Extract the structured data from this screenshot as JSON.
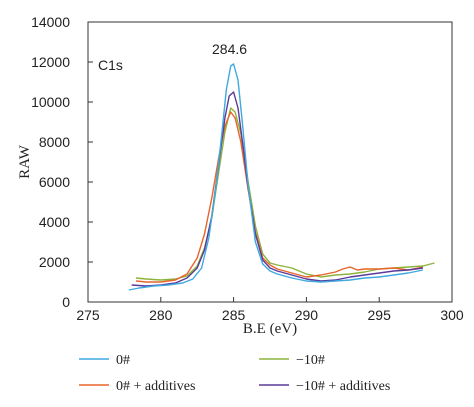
{
  "chart_data": {
    "type": "line",
    "xlabel": "B.E (eV)",
    "ylabel": "RAW",
    "xlim": [
      275,
      300
    ],
    "ylim": [
      0,
      14000
    ],
    "x_ticks": [
      275,
      280,
      285,
      290,
      295,
      300
    ],
    "y_ticks": [
      0,
      2000,
      4000,
      6000,
      8000,
      10000,
      12000,
      14000
    ],
    "grid": false,
    "legend_position": "bottom",
    "annotations": [
      {
        "text": "C1s",
        "x": 277,
        "y": 11800
      },
      {
        "text": "284.6",
        "x": 284.7,
        "y": 12400
      }
    ],
    "series": [
      {
        "name": "0#",
        "color": "#3fa9e0",
        "x": [
          277.8,
          278.5,
          279.5,
          280.5,
          281.5,
          282.2,
          282.8,
          283.3,
          283.8,
          284.2,
          284.5,
          284.8,
          285.0,
          285.3,
          285.6,
          286.0,
          286.5,
          287.0,
          287.5,
          288.0,
          289.0,
          290.0,
          291.0,
          292.0,
          293.0,
          294.0,
          295.0,
          296.0,
          297.0,
          298.0
        ],
        "y": [
          600,
          700,
          800,
          850,
          950,
          1150,
          1700,
          3200,
          5800,
          8500,
          10600,
          11800,
          11900,
          11100,
          9000,
          5800,
          3000,
          1900,
          1550,
          1400,
          1200,
          1050,
          1000,
          1050,
          1100,
          1200,
          1250,
          1350,
          1450,
          1600
        ]
      },
      {
        "name": "0# + additives",
        "color": "#e8642a",
        "x": [
          278.3,
          279.0,
          280.0,
          281.0,
          281.8,
          282.5,
          283.0,
          283.5,
          284.0,
          284.4,
          284.8,
          285.1,
          285.5,
          286.0,
          286.5,
          287.0,
          287.5,
          288.0,
          289.0,
          290.0,
          291.0,
          292.0,
          292.5,
          293.0,
          293.5,
          294.0,
          295.0,
          296.0,
          297.0,
          298.0
        ],
        "y": [
          1050,
          1000,
          1000,
          1100,
          1400,
          2200,
          3400,
          5200,
          7300,
          8800,
          9500,
          9200,
          8000,
          5600,
          3500,
          2200,
          1850,
          1650,
          1450,
          1250,
          1350,
          1500,
          1650,
          1750,
          1600,
          1650,
          1650,
          1700,
          1600,
          1750
        ]
      },
      {
        "name": "−10#",
        "color": "#8cb43c",
        "x": [
          278.3,
          279.0,
          280.0,
          281.0,
          281.8,
          282.5,
          283.0,
          283.5,
          284.0,
          284.4,
          284.8,
          285.1,
          285.5,
          286.0,
          286.5,
          287.0,
          287.5,
          288.0,
          289.0,
          290.0,
          291.0,
          292.0,
          293.0,
          294.0,
          295.0,
          296.0,
          297.0,
          298.0,
          298.8
        ],
        "y": [
          1200,
          1150,
          1100,
          1150,
          1300,
          1800,
          2700,
          4200,
          6600,
          8500,
          9700,
          9500,
          8400,
          6000,
          3800,
          2400,
          1950,
          1850,
          1700,
          1400,
          1250,
          1350,
          1400,
          1500,
          1650,
          1700,
          1750,
          1800,
          1950
        ]
      },
      {
        "name": "−10# + additives",
        "color": "#5b3a9a",
        "x": [
          278.0,
          279.0,
          280.0,
          281.0,
          281.8,
          282.5,
          283.0,
          283.5,
          284.0,
          284.4,
          284.7,
          285.0,
          285.3,
          285.7,
          286.0,
          286.5,
          287.0,
          287.5,
          288.0,
          289.0,
          290.0,
          291.0,
          292.0,
          293.0,
          294.0,
          295.0,
          296.0,
          297.0,
          298.0
        ],
        "y": [
          850,
          800,
          850,
          950,
          1200,
          1700,
          2600,
          4300,
          7000,
          9200,
          10300,
          10500,
          9700,
          7500,
          5700,
          3400,
          2100,
          1700,
          1550,
          1350,
          1150,
          1050,
          1100,
          1250,
          1350,
          1450,
          1550,
          1600,
          1700
        ]
      }
    ]
  }
}
